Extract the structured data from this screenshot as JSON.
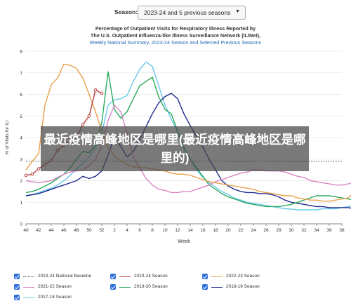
{
  "season_selector": {
    "label": "Season:",
    "value": "2023-24 and 5 previous seasons"
  },
  "title": {
    "line1": "Percentage of Outpatient Visits for Respiratory Illness Reported by",
    "line2": "The U.S. Outpatient Influenza-like Illness Surveillance Network (ILINet),",
    "line3": "Weekly National Summary, 2023-24 Season and Selected Previous Seasons"
  },
  "overlay_text": "最近疫情高峰地区是哪里(最近疫情高峰地区是哪里的)",
  "colors": {
    "baseline": "#333333",
    "s2023_24": "#b5403f",
    "s2022_23": "#e9a04a",
    "s2021_22": "#d985c6",
    "s2019_20": "#2aaa5c",
    "s2018_19": "#1e2a8c",
    "s2017_18": "#6cc8ea"
  },
  "chart_data": {
    "type": "line",
    "title": "Percentage of Outpatient Visits for Respiratory Illness Reported by The U.S. Outpatient Influenza-like Illness Surveillance Network (ILINet), Weekly National Summary, 2023-24 Season and Selected Previous Seasons",
    "xlabel": "Week",
    "ylabel": "% of Visits for ILI",
    "x_ticks": [
      "40",
      "42",
      "44",
      "46",
      "48",
      "50",
      "52",
      "2",
      "4",
      "6",
      "8",
      "10",
      "12",
      "14",
      "16",
      "18",
      "20",
      "22",
      "24",
      "26",
      "28",
      "30",
      "32",
      "34",
      "36",
      "38"
    ],
    "ylim": [
      0,
      8
    ],
    "y_ticks": [
      0,
      1,
      2,
      3,
      4,
      5,
      6,
      7,
      8
    ],
    "grid": "horizontal",
    "legend_position": "bottom",
    "baseline": {
      "name": "2023-24 National Baseline",
      "value": 2.9
    },
    "series": [
      {
        "name": "2023-24 Season",
        "key": "s2023_24",
        "markers": true,
        "values": [
          2.25,
          2.3,
          2.55,
          2.75,
          2.95,
          3.4,
          3.65,
          3.9,
          4.0,
          4.6,
          5.0,
          6.2,
          6.05
        ]
      },
      {
        "name": "2022-23 Season",
        "key": "s2022_23",
        "values": [
          2.5,
          2.9,
          3.25,
          5.5,
          6.45,
          6.75,
          7.4,
          7.35,
          7.2,
          6.75,
          6.0,
          5.2,
          4.3,
          3.5,
          3.15,
          2.9,
          2.75,
          2.65,
          2.6,
          2.6,
          2.55,
          2.5,
          2.45,
          2.35,
          2.3,
          2.3,
          2.25,
          2.15,
          2.05,
          1.95,
          1.9,
          1.85,
          1.8,
          1.75,
          1.7,
          1.65,
          1.6,
          1.5,
          1.45,
          1.4,
          1.35,
          1.3,
          1.3,
          1.2,
          1.15,
          1.1,
          1.1,
          1.05,
          1.05,
          1.1,
          1.15,
          1.2,
          1.5
        ]
      },
      {
        "name": "2021-22 Season",
        "key": "s2021_22",
        "values": [
          2.0,
          1.95,
          1.9,
          1.95,
          2.0,
          2.15,
          2.3,
          2.4,
          2.45,
          2.5,
          2.7,
          3.0,
          3.6,
          4.8,
          5.5,
          5.2,
          4.2,
          3.1,
          2.6,
          2.1,
          1.8,
          1.6,
          1.55,
          1.45,
          1.45,
          1.5,
          1.5,
          1.6,
          1.7,
          1.8,
          1.95,
          2.05,
          2.15,
          2.25,
          2.35,
          2.4,
          2.5,
          2.5,
          2.45,
          2.45,
          2.45,
          2.4,
          2.3,
          2.2,
          2.15,
          2.0,
          1.95,
          1.9,
          1.85,
          1.8,
          1.8,
          1.85,
          1.9,
          1.95,
          1.95,
          2.0,
          2.0,
          2.0,
          2.0,
          2.0,
          2.2,
          2.3,
          2.3,
          2.35
        ]
      },
      {
        "name": "2019-20 Season",
        "key": "s2019_20",
        "values": [
          1.45,
          1.5,
          1.6,
          1.75,
          1.9,
          2.1,
          2.3,
          2.6,
          3.0,
          3.35,
          3.3,
          3.65,
          4.7,
          7.05,
          5.3,
          4.9,
          5.2,
          5.8,
          6.4,
          6.6,
          6.8,
          5.9,
          5.3,
          5.1,
          4.3,
          3.5,
          3.0,
          2.6,
          2.2,
          1.8,
          1.6,
          1.4,
          1.25,
          1.15,
          1.05,
          0.95,
          0.9,
          0.85,
          0.8,
          0.8,
          0.8,
          0.85,
          0.9,
          1.0,
          1.1,
          1.2,
          1.3,
          1.3,
          1.3,
          1.25,
          1.2,
          1.15,
          1.1,
          1.05,
          1.0,
          1.0,
          1.05,
          1.1,
          1.1,
          1.1,
          1.05,
          1.1,
          1.05,
          1.05
        ]
      },
      {
        "name": "2018-19 Season",
        "key": "s2018_19",
        "values": [
          1.3,
          1.35,
          1.4,
          1.5,
          1.6,
          1.7,
          1.8,
          1.9,
          2.0,
          2.2,
          2.1,
          2.2,
          2.45,
          3.2,
          4.0,
          3.6,
          3.1,
          3.35,
          3.9,
          4.5,
          5.1,
          5.6,
          5.9,
          6.05,
          5.8,
          5.1,
          4.55,
          4.05,
          3.55,
          3.0,
          2.5,
          2.0,
          1.75,
          1.6,
          1.5,
          1.45,
          1.45,
          1.4,
          1.4,
          1.35,
          1.25,
          1.1,
          1.0,
          0.95,
          0.9,
          0.85,
          0.8,
          0.8,
          0.75,
          0.75,
          0.75,
          0.75,
          0.7,
          0.75,
          0.8,
          0.85,
          0.9,
          1.0,
          1.1,
          1.1,
          1.15,
          1.15,
          1.2,
          1.3
        ]
      },
      {
        "name": "2017-18 Season",
        "key": "s2017_18",
        "values": [
          1.3,
          1.35,
          1.45,
          1.55,
          1.65,
          1.8,
          2.0,
          2.25,
          2.55,
          2.8,
          3.1,
          3.55,
          4.2,
          5.5,
          5.75,
          5.8,
          5.95,
          6.6,
          7.15,
          7.5,
          7.3,
          6.4,
          5.5,
          4.85,
          4.25,
          3.55,
          3.0,
          2.5,
          2.15,
          1.9,
          1.7,
          1.5,
          1.35,
          1.2,
          1.1,
          1.0,
          0.95,
          0.9,
          0.85,
          0.8,
          0.75,
          0.7,
          0.68,
          0.65,
          0.65,
          0.65,
          0.65,
          0.7,
          0.7,
          0.7,
          0.75,
          0.8,
          0.85,
          0.9,
          0.9,
          0.9,
          0.85,
          0.85,
          0.9,
          0.9,
          0.95,
          1.0,
          1.0,
          1.0
        ]
      }
    ]
  },
  "legend": [
    {
      "label": "2023-24 National Baseline",
      "key": "baseline",
      "style": "dotted"
    },
    {
      "label": "2023-24 Season",
      "key": "s2023_24",
      "style": "solid"
    },
    {
      "label": "2022-23 Season",
      "key": "s2022_23",
      "style": "solid"
    },
    {
      "label": "2021-22 Season",
      "key": "s2021_22",
      "style": "solid"
    },
    {
      "label": "2019-20 Season",
      "key": "s2019_20",
      "style": "solid"
    },
    {
      "label": "2018-19 Season",
      "key": "s2018_19",
      "style": "solid"
    },
    {
      "label": "2017-18 Season",
      "key": "s2017_18",
      "style": "solid"
    }
  ]
}
